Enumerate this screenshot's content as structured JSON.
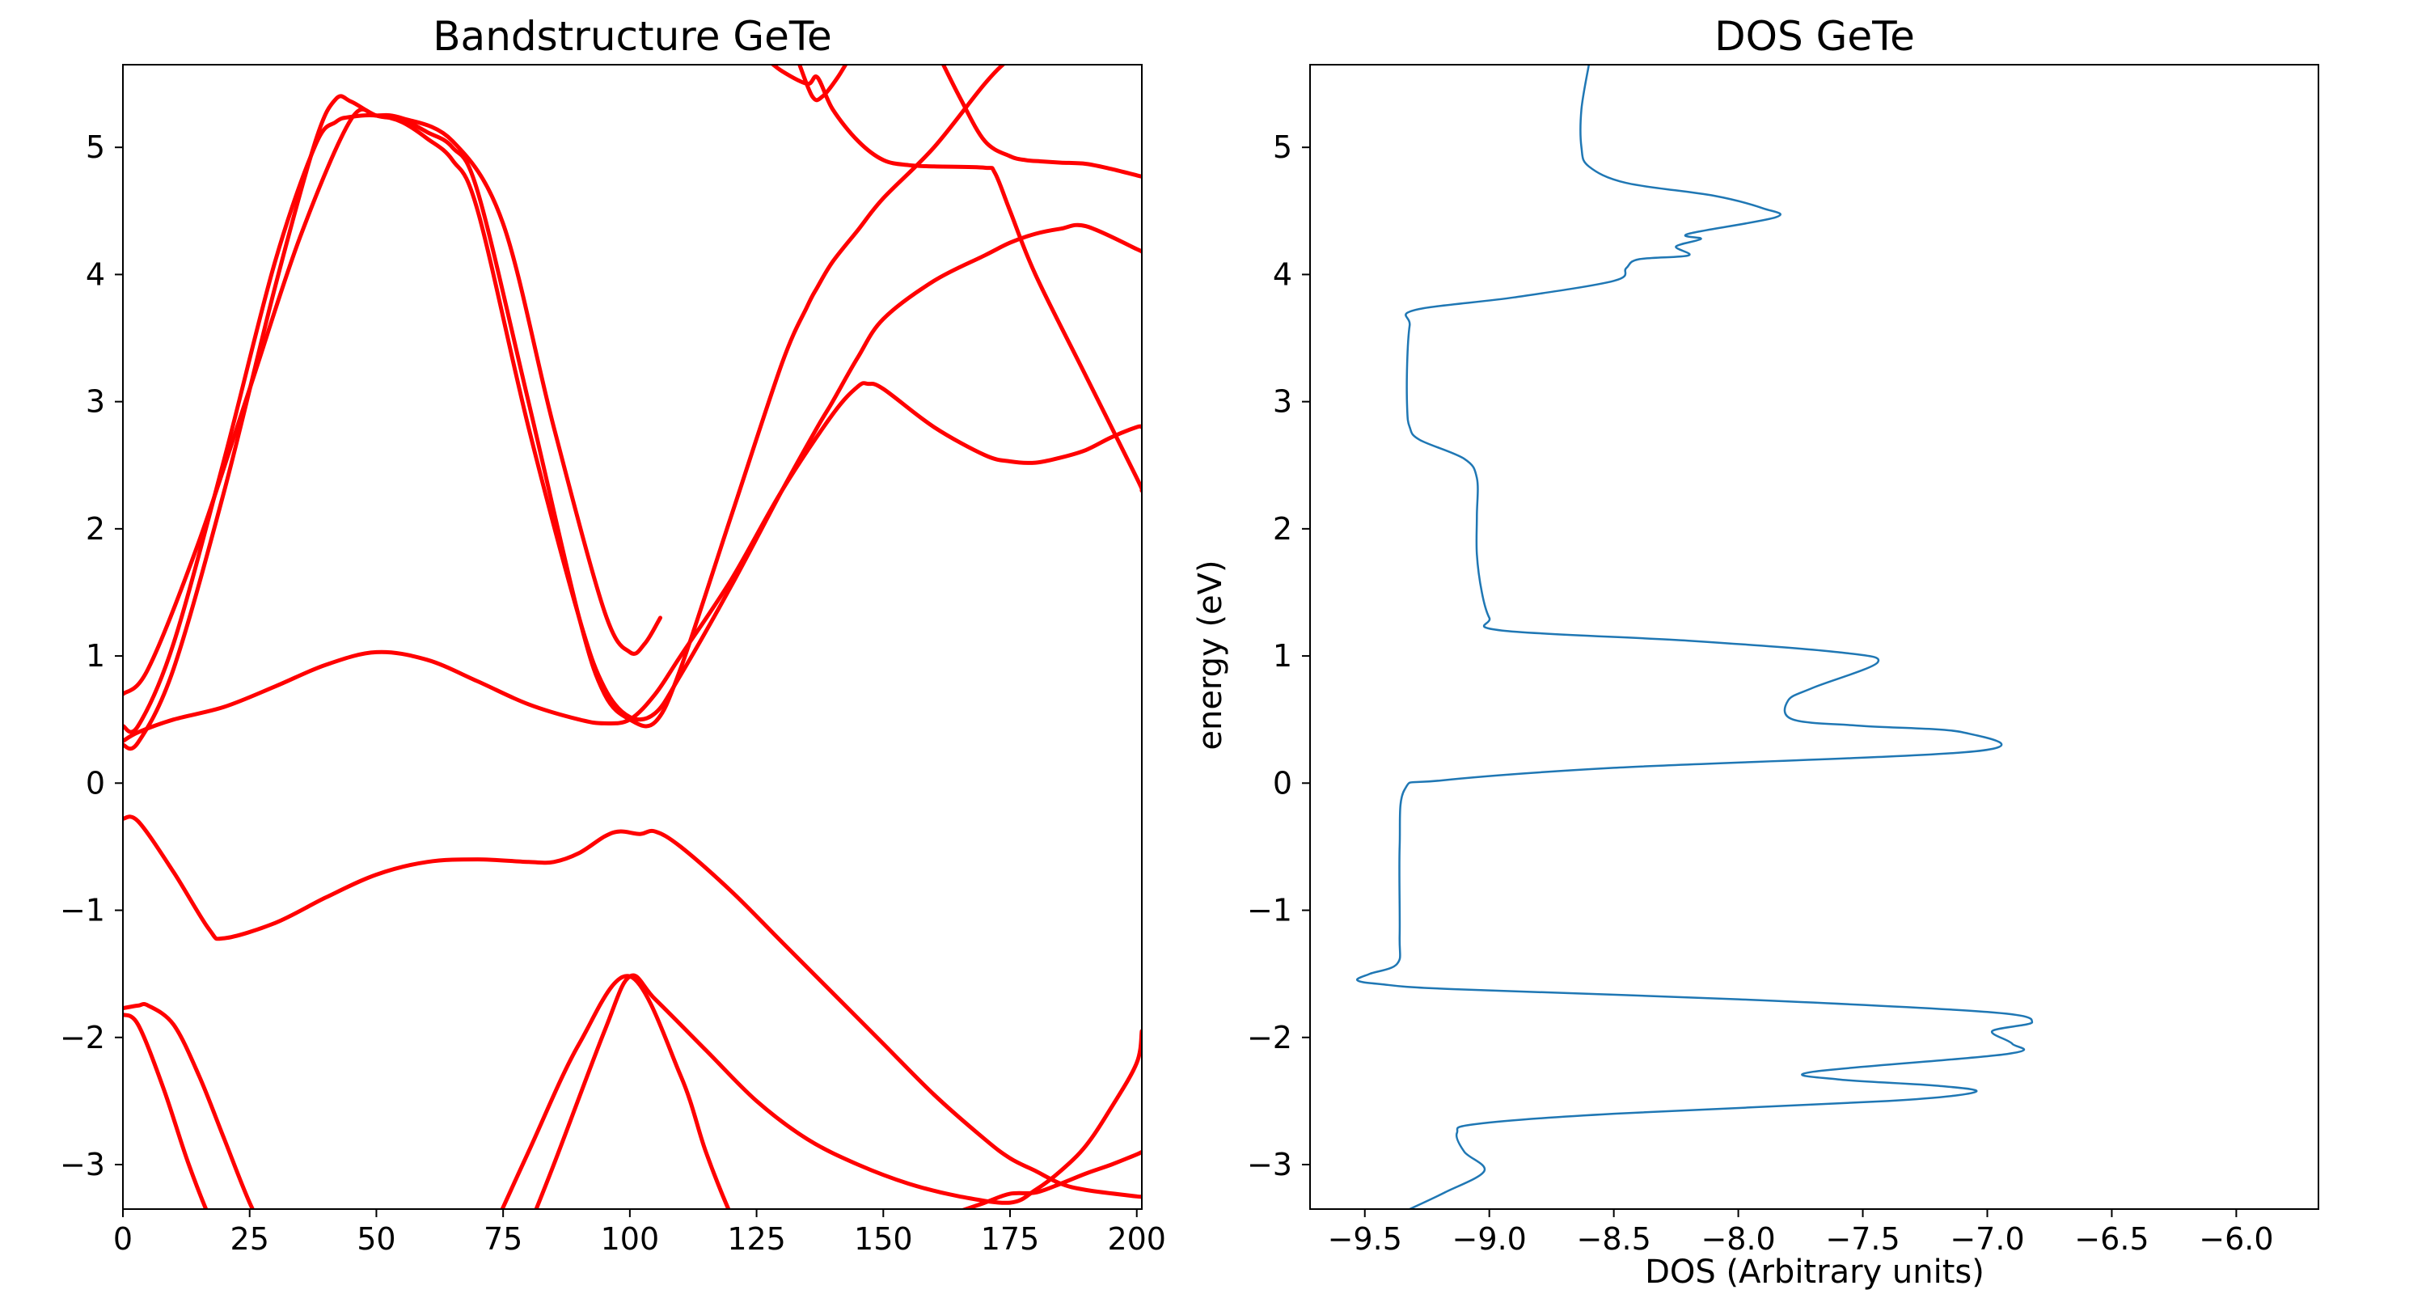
{
  "chart_data": [
    {
      "type": "line",
      "title": "Bandstructure GeTe",
      "xlabel": "",
      "ylabel": "",
      "xlim": [
        0,
        201
      ],
      "ylim": [
        -3.35,
        5.65
      ],
      "xticks": [
        0,
        25,
        50,
        75,
        100,
        125,
        150,
        175,
        200
      ],
      "yticks": [
        -3,
        -2,
        -1,
        0,
        1,
        2,
        3,
        4,
        5
      ],
      "xtick_labels": [
        "0",
        "25",
        "50",
        "75",
        "100",
        "125",
        "150",
        "175",
        "200"
      ],
      "ytick_labels": [
        "−3",
        "−2",
        "−1",
        "0",
        "1",
        "2",
        "3",
        "4",
        "5"
      ],
      "grid": false,
      "line_color": "#ff0000",
      "series": [
        {
          "x": [
            0,
            3,
            10,
            20,
            30,
            38,
            42,
            45,
            50,
            55,
            60,
            65,
            70,
            80,
            90,
            95,
            100,
            105,
            110,
            120,
            130,
            135,
            137,
            140,
            145,
            150,
            160,
            170,
            175,
            180,
            190,
            200,
            201
          ],
          "y": [
            0.3,
            0.32,
            0.9,
            2.3,
            3.9,
            5.05,
            5.38,
            5.36,
            5.25,
            5.22,
            5.12,
            5.0,
            4.65,
            3.0,
            1.3,
            0.7,
            0.5,
            0.48,
            0.9,
            2.1,
            3.3,
            3.75,
            3.9,
            4.1,
            4.35,
            4.6,
            5.0,
            5.5,
            5.7,
            5.85,
            6.0,
            6.1,
            6.1
          ]
        },
        {
          "x": [
            0,
            3,
            10,
            20,
            30,
            38,
            42,
            45,
            50,
            55,
            60,
            65,
            70,
            80,
            90,
            95,
            100,
            105,
            110,
            120,
            130,
            137,
            140,
            145,
            150,
            160,
            170,
            175,
            180,
            185,
            190,
            200,
            201
          ],
          "y": [
            0.45,
            0.45,
            1.1,
            2.55,
            4.1,
            5.02,
            5.2,
            5.24,
            5.25,
            5.2,
            5.07,
            4.9,
            4.5,
            2.8,
            1.3,
            0.75,
            0.52,
            0.55,
            0.85,
            1.55,
            2.3,
            2.8,
            3.0,
            3.35,
            3.65,
            3.95,
            4.15,
            4.25,
            4.32,
            4.36,
            4.38,
            4.2,
            4.18
          ]
        },
        {
          "x": [
            0,
            5,
            15,
            25,
            35,
            45,
            50,
            55,
            65,
            75,
            85,
            95,
            100,
            103,
            106
          ],
          "y": [
            0.7,
            0.9,
            1.9,
            3.1,
            4.3,
            5.22,
            5.25,
            5.23,
            5.05,
            4.4,
            2.8,
            1.35,
            1.03,
            1.1,
            1.3
          ]
        },
        {
          "x": [
            0,
            3,
            10,
            20,
            30,
            40,
            50,
            60,
            70,
            80,
            90,
            95,
            100,
            105,
            110,
            120,
            130,
            140,
            145,
            147,
            150,
            160,
            170,
            175,
            180,
            185,
            190,
            195,
            200,
            201
          ],
          "y": [
            0.33,
            0.4,
            0.5,
            0.6,
            0.76,
            0.93,
            1.03,
            0.97,
            0.8,
            0.62,
            0.5,
            0.47,
            0.5,
            0.7,
            1.0,
            1.6,
            2.3,
            2.9,
            3.12,
            3.14,
            3.1,
            2.8,
            2.58,
            2.53,
            2.52,
            2.56,
            2.62,
            2.72,
            2.8,
            2.8
          ]
        },
        {
          "x": [
            118,
            125,
            130,
            135,
            137,
            140,
            145,
            150,
            155,
            160,
            170,
            172,
            175,
            180,
            190,
            200,
            201
          ],
          "y": [
            5.9,
            5.75,
            5.6,
            5.5,
            5.55,
            5.3,
            5.05,
            4.9,
            4.86,
            4.85,
            4.84,
            4.8,
            4.5,
            4.0,
            3.2,
            2.4,
            2.3
          ]
        },
        {
          "x": [
            130,
            133,
            136,
            138,
            141,
            144
          ],
          "y": [
            6.0,
            5.7,
            5.4,
            5.4,
            5.55,
            5.75
          ]
        },
        {
          "x": [
            160,
            165,
            170,
            175,
            178,
            181,
            185,
            190,
            195,
            200,
            201
          ],
          "y": [
            5.8,
            5.4,
            5.05,
            4.93,
            4.9,
            4.89,
            4.88,
            4.87,
            4.83,
            4.78,
            4.77
          ]
        },
        {
          "x": [
            0,
            3,
            10,
            17,
            20,
            30,
            40,
            50,
            60,
            70,
            80,
            85,
            90,
            95,
            98,
            102,
            105,
            110,
            120,
            130,
            140,
            150,
            160,
            170,
            175,
            180,
            185,
            190,
            200,
            201
          ],
          "y": [
            -0.28,
            -0.3,
            -0.7,
            -1.15,
            -1.22,
            -1.1,
            -0.9,
            -0.72,
            -0.62,
            -0.6,
            -0.62,
            -0.62,
            -0.55,
            -0.42,
            -0.38,
            -0.4,
            -0.38,
            -0.5,
            -0.85,
            -1.25,
            -1.65,
            -2.05,
            -2.45,
            -2.8,
            -2.95,
            -3.05,
            -3.15,
            -3.2,
            -3.25,
            -3.25
          ]
        },
        {
          "x": [
            0,
            3,
            5,
            10,
            15,
            20,
            25,
            30
          ],
          "y": [
            -1.77,
            -1.75,
            -1.75,
            -1.9,
            -2.3,
            -2.8,
            -3.3,
            -3.7
          ]
        },
        {
          "x": [
            0,
            3,
            8,
            13,
            18,
            22
          ],
          "y": [
            -1.82,
            -1.9,
            -2.4,
            -3.0,
            -3.5,
            -3.8
          ]
        },
        {
          "x": [
            72,
            80,
            90,
            100,
            110,
            115,
            120,
            125
          ],
          "y": [
            -3.6,
            -2.9,
            -2.05,
            -1.52,
            -2.3,
            -2.9,
            -3.4,
            -3.8
          ]
        },
        {
          "x": [
            78,
            85,
            95,
            100,
            105,
            115,
            125,
            135,
            145,
            155,
            165,
            175,
            180,
            185,
            190,
            195,
            200,
            201
          ],
          "y": [
            -3.7,
            -3.0,
            -1.95,
            -1.52,
            -1.7,
            -2.1,
            -2.5,
            -2.8,
            -3.0,
            -3.15,
            -3.25,
            -3.3,
            -3.2,
            -3.05,
            -2.85,
            -2.55,
            -2.2,
            -1.95
          ]
        },
        {
          "x": [
            150,
            160,
            170,
            175,
            180,
            185,
            190,
            195,
            200,
            201
          ],
          "y": [
            -3.7,
            -3.45,
            -3.3,
            -3.23,
            -3.22,
            -3.15,
            -3.07,
            -3.0,
            -2.92,
            -2.9
          ]
        }
      ]
    },
    {
      "type": "line",
      "title": "DOS GeTe",
      "xlabel": "DOS (Arbitrary units)",
      "ylabel": "energy (eV)",
      "xlim": [
        -9.72,
        -5.67
      ],
      "ylim": [
        -3.35,
        5.65
      ],
      "xticks": [
        -9.5,
        -9.0,
        -8.5,
        -8.0,
        -7.5,
        -7.0,
        -6.5,
        -6.0
      ],
      "yticks": [
        -3,
        -2,
        -1,
        0,
        1,
        2,
        3,
        4,
        5
      ],
      "xtick_labels": [
        "−9.5",
        "−9.0",
        "−8.5",
        "−8.0",
        "−7.5",
        "−7.0",
        "−6.5",
        "−6.0"
      ],
      "ytick_labels": [
        "−3",
        "−2",
        "−1",
        "0",
        "1",
        "2",
        "3",
        "4",
        "5"
      ],
      "grid": false,
      "line_color": "#1f77b4",
      "series": [
        {
          "x": [
            -9.32,
            -9.18,
            -9.02,
            -9.1,
            -9.13,
            -9.05,
            -8.5,
            -7.4,
            -7.05,
            -7.2,
            -7.6,
            -7.7,
            -6.92,
            -6.9,
            -6.98,
            -6.82,
            -7.0,
            -8.0,
            -9.15,
            -9.44,
            -9.53,
            -9.48,
            -9.37,
            -9.36,
            -9.36,
            -9.34,
            -9.2,
            -8.5,
            -7.05,
            -7.1,
            -7.5,
            -7.78,
            -7.8,
            -7.7,
            -7.44,
            -7.6,
            -8.2,
            -8.95,
            -9.0,
            -9.03,
            -9.05,
            -9.05,
            -9.05,
            -9.1,
            -9.28,
            -9.32,
            -9.33,
            -9.33,
            -9.32,
            -9.3,
            -8.9,
            -8.5,
            -8.45,
            -8.4,
            -8.2,
            -8.25,
            -8.15,
            -8.2,
            -7.85,
            -7.9,
            -8.1,
            -8.45,
            -8.6,
            -8.63,
            -8.63,
            -8.6
          ],
          "y": [
            -3.35,
            -3.22,
            -3.05,
            -2.9,
            -2.75,
            -2.68,
            -2.6,
            -2.5,
            -2.43,
            -2.38,
            -2.33,
            -2.27,
            -2.13,
            -2.05,
            -1.95,
            -1.88,
            -1.8,
            -1.7,
            -1.62,
            -1.58,
            -1.55,
            -1.5,
            -1.42,
            -1.2,
            -0.5,
            -0.05,
            0.02,
            0.12,
            0.25,
            0.4,
            0.45,
            0.5,
            0.65,
            0.75,
            0.95,
            1.03,
            1.12,
            1.2,
            1.3,
            1.5,
            1.8,
            2.1,
            2.4,
            2.55,
            2.7,
            2.8,
            2.95,
            3.3,
            3.6,
            3.72,
            3.82,
            3.95,
            4.05,
            4.12,
            4.15,
            4.22,
            4.28,
            4.32,
            4.45,
            4.52,
            4.62,
            4.72,
            4.85,
            5.0,
            5.3,
            5.65
          ]
        }
      ]
    }
  ]
}
